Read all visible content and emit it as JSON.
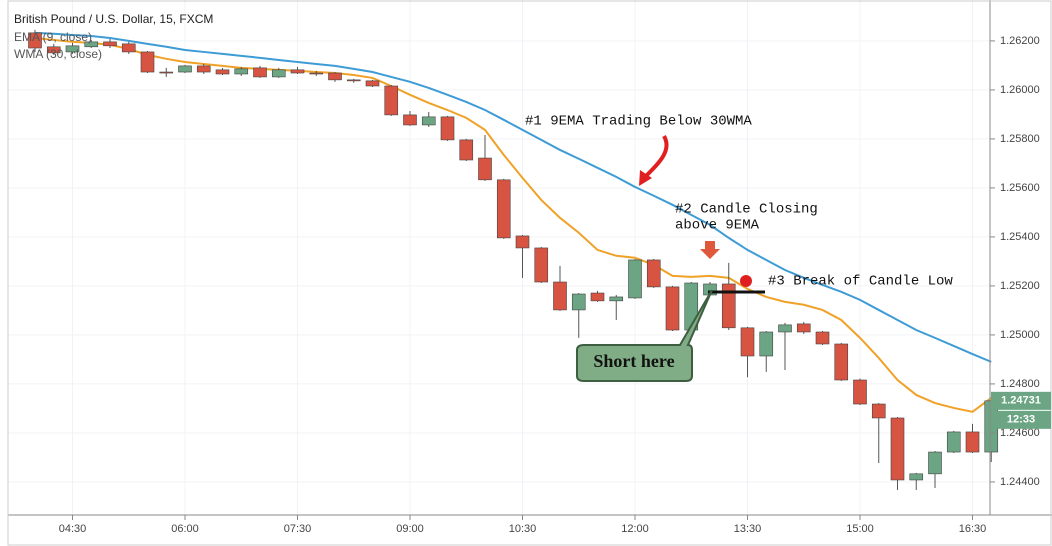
{
  "chart_data": {
    "type": "candlestick",
    "title": "British Pound / U.S. Dollar, 15, FXCM",
    "x": [
      null,
      null,
      "04:30",
      null,
      null,
      null,
      null,
      null,
      "06:00",
      null,
      null,
      null,
      null,
      null,
      "07:30",
      null,
      null,
      null,
      null,
      null,
      "09:00",
      null,
      null,
      null,
      null,
      null,
      "10:30",
      null,
      null,
      null,
      null,
      null,
      "12:00",
      null,
      null,
      null,
      null,
      null,
      "13:30",
      null,
      null,
      null,
      null,
      null,
      "15:00",
      null,
      null,
      null,
      null,
      null,
      "16:30",
      null
    ],
    "up_color": "#6ba583",
    "down_color": "#d75442",
    "open": [
      1.26233,
      1.26176,
      1.26155,
      1.26176,
      1.26196,
      1.26188,
      1.26155,
      1.26073,
      1.26073,
      1.26098,
      1.26082,
      1.26065,
      1.2609,
      1.26053,
      1.26082,
      1.26069,
      1.26069,
      1.26041,
      1.26037,
      1.26016,
      1.25898,
      1.25857,
      1.2589,
      1.25796,
      1.25722,
      1.25633,
      1.25404,
      1.25355,
      1.25216,
      1.25102,
      1.25171,
      1.25139,
      1.25151,
      1.25306,
      1.25196,
      1.2502,
      1.25163,
      1.25208,
      1.25029,
      1.24914,
      1.25012,
      1.25045,
      1.25012,
      1.24963,
      1.24816,
      1.24718,
      1.24661,
      1.24408,
      1.24433,
      1.24522,
      1.24604,
      1.24522
    ],
    "high": [
      1.26245,
      1.26188,
      1.26192,
      1.26204,
      1.26208,
      1.26196,
      1.26159,
      1.2609,
      1.26102,
      1.26106,
      1.2609,
      1.26094,
      1.26098,
      1.2609,
      1.26094,
      1.26078,
      1.26073,
      1.26045,
      1.26041,
      1.2602,
      1.25914,
      1.2591,
      1.25894,
      1.258,
      1.25816,
      1.25637,
      1.25408,
      1.25359,
      1.25282,
      1.25171,
      1.2518,
      1.25163,
      1.2531,
      1.2531,
      1.252,
      1.25216,
      1.25216,
      1.25294,
      1.25033,
      1.25016,
      1.25049,
      1.25053,
      1.25016,
      1.24967,
      1.24822,
      1.24722,
      1.24665,
      1.24437,
      1.24526,
      1.24608,
      1.24637,
      1.24735
    ],
    "low": [
      1.26155,
      1.26143,
      1.26147,
      1.26171,
      1.26171,
      1.26147,
      1.26069,
      1.26053,
      1.26069,
      1.26065,
      1.26061,
      1.26057,
      1.26049,
      1.26049,
      1.26065,
      1.26057,
      1.26033,
      1.26029,
      1.26012,
      1.25894,
      1.25853,
      1.25849,
      1.25792,
      1.2571,
      1.25629,
      1.25392,
      1.25233,
      1.25212,
      1.25098,
      1.24988,
      1.25135,
      1.25061,
      1.25147,
      1.25192,
      1.25016,
      1.25016,
      1.25159,
      1.2502,
      1.24827,
      1.24849,
      1.24857,
      1.25004,
      1.24959,
      1.24812,
      1.24714,
      1.24477,
      1.24367,
      1.24367,
      1.24375,
      1.24518,
      1.24518,
      1.24481
    ],
    "close": [
      1.26171,
      1.26151,
      1.2618,
      1.26196,
      1.2618,
      1.26155,
      1.26073,
      1.26071,
      1.26098,
      1.26073,
      1.26065,
      1.26086,
      1.26053,
      1.26082,
      1.26069,
      1.26065,
      1.26041,
      1.26037,
      1.26016,
      1.25898,
      1.25857,
      1.2589,
      1.25796,
      1.25714,
      1.25633,
      1.25396,
      1.25355,
      1.25216,
      1.25102,
      1.25167,
      1.25139,
      1.25155,
      1.25306,
      1.25196,
      1.2502,
      1.25212,
      1.25208,
      1.25029,
      1.24914,
      1.25012,
      1.25041,
      1.25012,
      1.24963,
      1.24816,
      1.24718,
      1.24661,
      1.24408,
      1.24433,
      1.24522,
      1.24604,
      1.24522,
      1.24731
    ],
    "series": [
      {
        "name": "EMA (9, close)",
        "color": "#f0a127",
        "values": [
          1.26212,
          1.26204,
          1.26196,
          1.26192,
          1.26184,
          1.26167,
          1.26143,
          1.26127,
          1.26114,
          1.26106,
          1.26098,
          1.2609,
          1.26086,
          1.26082,
          1.26078,
          1.26073,
          1.26069,
          1.26061,
          1.26049,
          1.26016,
          1.2598,
          1.25947,
          1.25918,
          1.25886,
          1.25837,
          1.25735,
          1.25641,
          1.25551,
          1.25478,
          1.25417,
          1.25347,
          1.25323,
          1.25315,
          1.25286,
          1.25241,
          1.25237,
          1.25241,
          1.25233,
          1.25188,
          1.25155,
          1.25135,
          1.25123,
          1.25102,
          1.25061,
          1.24988,
          1.24906,
          1.24816,
          1.24755,
          1.24722,
          1.24702,
          1.24686,
          1.24743
        ]
      },
      {
        "name": "WMA (30, close)",
        "color": "#3d9bd6",
        "values": [
          1.26233,
          1.26229,
          1.26224,
          1.2622,
          1.26212,
          1.262,
          1.26188,
          1.26176,
          1.26163,
          1.26155,
          1.26147,
          1.26139,
          1.26131,
          1.26122,
          1.26114,
          1.26106,
          1.26098,
          1.26086,
          1.26073,
          1.26053,
          1.26033,
          1.26008,
          1.2598,
          1.25951,
          1.25918,
          1.25878,
          1.25837,
          1.25796,
          1.25755,
          1.25719,
          1.25682,
          1.25645,
          1.25604,
          1.25568,
          1.25531,
          1.2549,
          1.25449,
          1.25396,
          1.25347,
          1.25306,
          1.25265,
          1.25233,
          1.25204,
          1.25176,
          1.25143,
          1.25102,
          1.25061,
          1.2502,
          1.24988,
          1.24955,
          1.24922,
          1.2489
        ]
      }
    ],
    "ylim": [
      1.24265,
      1.26367
    ],
    "yticks": [
      {
        "value": 1.262,
        "label": "1.26200"
      },
      {
        "value": 1.26,
        "label": "1.26000"
      },
      {
        "value": 1.258,
        "label": "1.25800"
      },
      {
        "value": 1.256,
        "label": "1.25600"
      },
      {
        "value": 1.254,
        "label": "1.25400"
      },
      {
        "value": 1.252,
        "label": "1.25200"
      },
      {
        "value": 1.25,
        "label": "1.25000"
      },
      {
        "value": 1.248,
        "label": "1.24800"
      },
      {
        "value": 1.246,
        "label": "1.24600"
      },
      {
        "value": 1.244,
        "label": "1.24400"
      }
    ],
    "last_price": {
      "value": 1.24731,
      "label": "1.24731"
    },
    "countdown": "12:33",
    "annotations": {
      "first": "#1 9EMA Trading Below 30WMA",
      "second": [
        "#2 Candle Closing",
        "above 9EMA"
      ],
      "third": "#3 Break of Candle Low",
      "entry": "Short here"
    }
  }
}
